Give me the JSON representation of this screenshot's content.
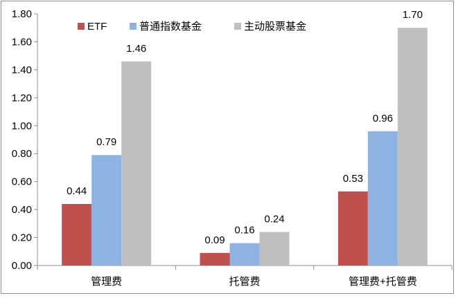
{
  "chart_data": {
    "type": "bar",
    "categories": [
      "管理费",
      "托管费",
      "管理费+托管费"
    ],
    "series": [
      {
        "name": "ETF",
        "color": "#c0504d",
        "values": [
          0.44,
          0.09,
          0.53
        ]
      },
      {
        "name": "普通指数基金",
        "color": "#8db3e2",
        "values": [
          0.79,
          0.16,
          0.96
        ]
      },
      {
        "name": "主动股票基金",
        "color": "#bfbfbf",
        "values": [
          1.46,
          0.24,
          1.7
        ]
      }
    ],
    "ylim": [
      0,
      1.8
    ],
    "yticks": [
      "0.00",
      "0.20",
      "0.40",
      "0.60",
      "0.80",
      "1.00",
      "1.20",
      "1.40",
      "1.60",
      "1.80"
    ],
    "legend_position": "top",
    "grid": false
  }
}
